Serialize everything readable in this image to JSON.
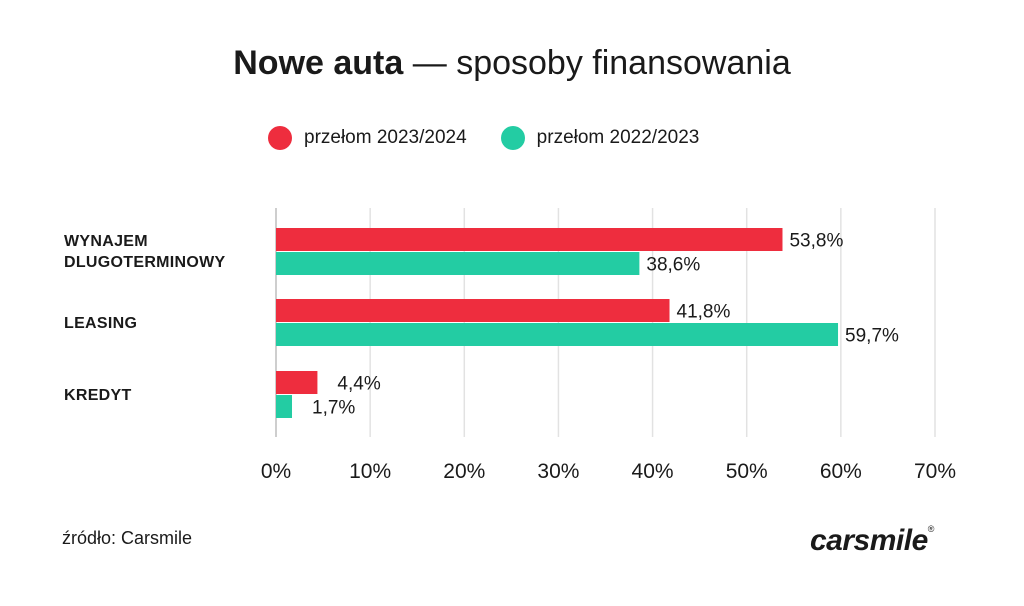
{
  "chart_data": {
    "type": "bar",
    "orientation": "horizontal",
    "title_bold": "Nowe auta",
    "title_rest": " — sposoby finansowania",
    "categories": [
      "WYNAJEM DLUGOTERMINOWY",
      "LEASING",
      "KREDYT"
    ],
    "category_lines": [
      [
        "WYNAJEM",
        "DLUGOTERMINOWY"
      ],
      [
        "LEASING"
      ],
      [
        "KREDYT"
      ]
    ],
    "series": [
      {
        "name": "przełom 2023/2024",
        "color": "#ee2d3e",
        "values": [
          53.8,
          41.8,
          4.4
        ],
        "labels": [
          "53,8%",
          "41,8%",
          "4,4%"
        ]
      },
      {
        "name": "przełom 2022/2023",
        "color": "#23cca3",
        "values": [
          38.6,
          59.7,
          1.7
        ],
        "labels": [
          "38,6%",
          "59,7%",
          "1,7%"
        ]
      }
    ],
    "xlim": [
      0,
      70
    ],
    "xticks": [
      0,
      10,
      20,
      30,
      40,
      50,
      60,
      70
    ],
    "xtick_labels": [
      "0%",
      "10%",
      "20%",
      "30%",
      "40%",
      "50%",
      "60%",
      "70%"
    ],
    "grid": true,
    "legend_position": "top"
  },
  "footer": {
    "source": "źródło: Carsmile",
    "logo": "carsmile",
    "logo_mark": "®"
  }
}
